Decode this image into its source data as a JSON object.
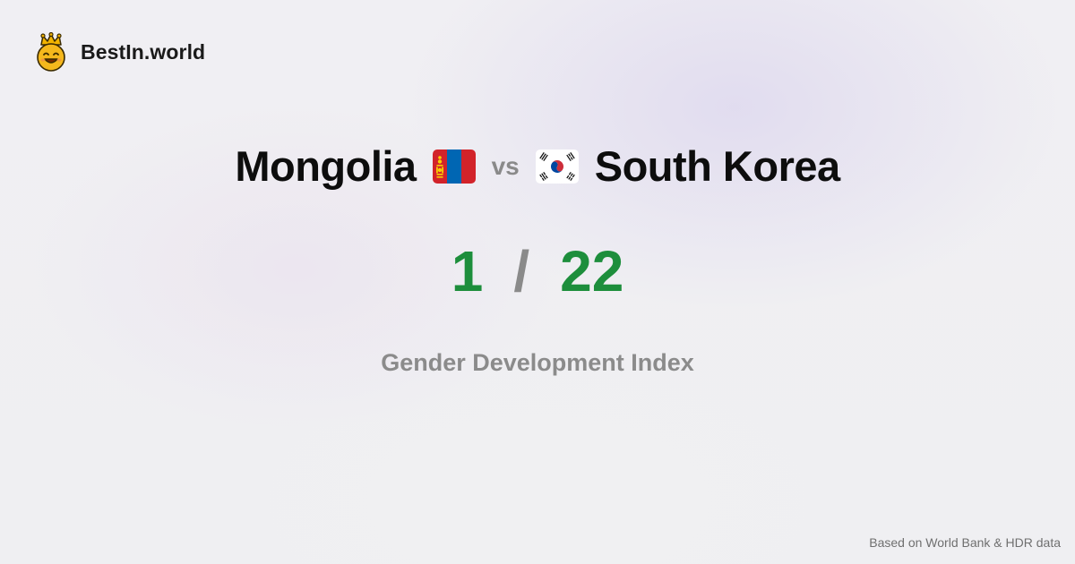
{
  "brand": {
    "name": "BestIn.world",
    "logo_icon": "crown-smiley-icon"
  },
  "comparison": {
    "country_a": {
      "name": "Mongolia",
      "flag_icon": "mongolia-flag-icon"
    },
    "vs_label": "vs",
    "country_b": {
      "name": "South Korea",
      "flag_icon": "south-korea-flag-icon"
    }
  },
  "score": {
    "value_a": "1",
    "separator": "/",
    "value_b": "22",
    "value_color": "#1d8e3c"
  },
  "metric": {
    "label": "Gender Development Index"
  },
  "footer": {
    "source_note": "Based on World Bank & HDR data"
  }
}
